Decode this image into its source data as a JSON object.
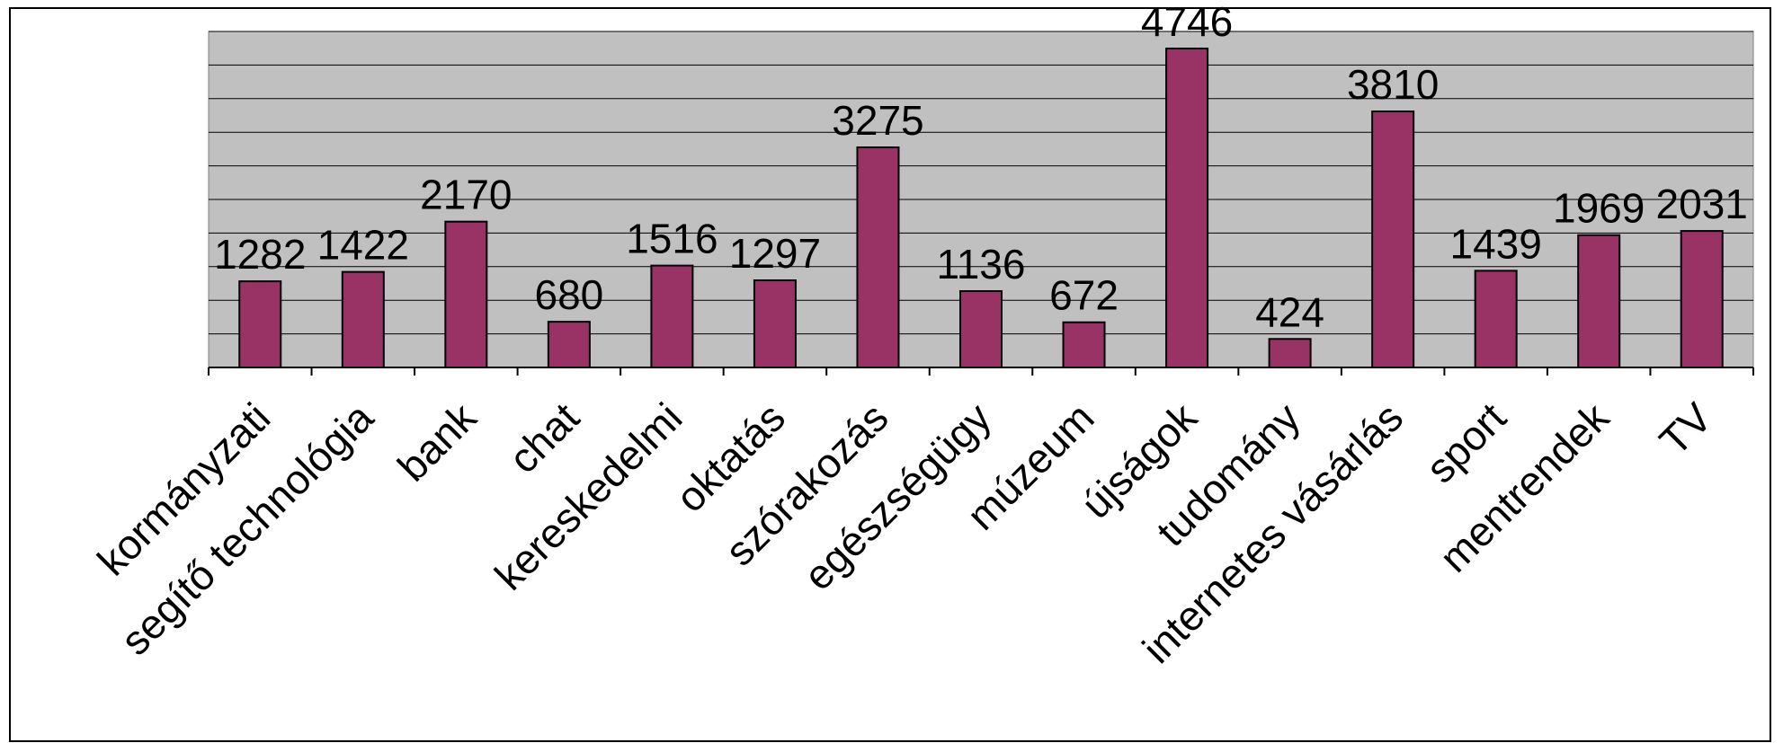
{
  "chart_data": {
    "type": "bar",
    "title": "",
    "xlabel": "",
    "ylabel": "",
    "categories": [
      "kormányzati",
      "segítő technológia",
      "bank",
      "chat",
      "kereskedelmi",
      "oktatás",
      "szórakozás",
      "egészségügy",
      "múzeum",
      "újságok",
      "tudomány",
      "internetes vásárlás",
      "sport",
      "mentrendek",
      "TV"
    ],
    "values": [
      1282,
      1422,
      2170,
      680,
      1516,
      1297,
      3275,
      1136,
      672,
      4746,
      424,
      3810,
      1439,
      1969,
      2031
    ],
    "ylim": [
      0,
      5000
    ],
    "gridlines": true,
    "grid_step": 500,
    "legend": "none",
    "colors": {
      "bar": "#993366",
      "plot_background": "#c0c0c0",
      "gridline": "#000000"
    }
  }
}
